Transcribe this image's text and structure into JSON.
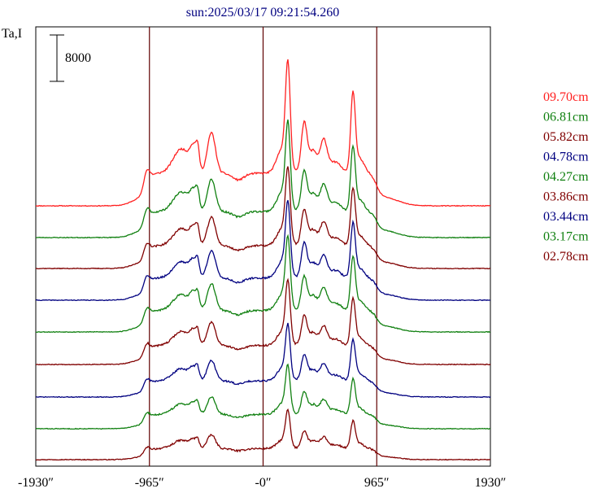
{
  "chart_data": {
    "type": "line",
    "title": "sun:2025/03/17 09:21:54.260",
    "ylabel": "Ta,I",
    "scale_bar_label": "8000",
    "x_ticks": [
      "-1930″",
      "-965″",
      "-0″",
      "965″",
      "1930″"
    ],
    "xlim": [
      -1930,
      1930
    ],
    "vertical_lines_at": [
      -965,
      0,
      965
    ],
    "series": [
      {
        "name": "09.70cm",
        "color": "#ff2020",
        "baseline": 253,
        "amp": 1.0,
        "seed": 11
      },
      {
        "name": "06.81cm",
        "color": "#108010",
        "baseline": 292,
        "amp": 0.8,
        "seed": 23
      },
      {
        "name": "05.82cm",
        "color": "#800000",
        "baseline": 330,
        "amp": 0.7,
        "seed": 37
      },
      {
        "name": "04.78cm",
        "color": "#000080",
        "baseline": 369,
        "amp": 0.68,
        "seed": 41
      },
      {
        "name": "04.27cm",
        "color": "#108010",
        "baseline": 408,
        "amp": 0.66,
        "seed": 53
      },
      {
        "name": "03.86cm",
        "color": "#800000",
        "baseline": 448,
        "amp": 0.58,
        "seed": 67
      },
      {
        "name": "03.44cm",
        "color": "#000080",
        "baseline": 488,
        "amp": 0.5,
        "seed": 71
      },
      {
        "name": "03.17cm",
        "color": "#108010",
        "baseline": 527,
        "amp": 0.44,
        "seed": 83
      },
      {
        "name": "02.78cm",
        "color": "#800000",
        "baseline": 565,
        "amp": 0.34,
        "seed": 97
      }
    ]
  }
}
